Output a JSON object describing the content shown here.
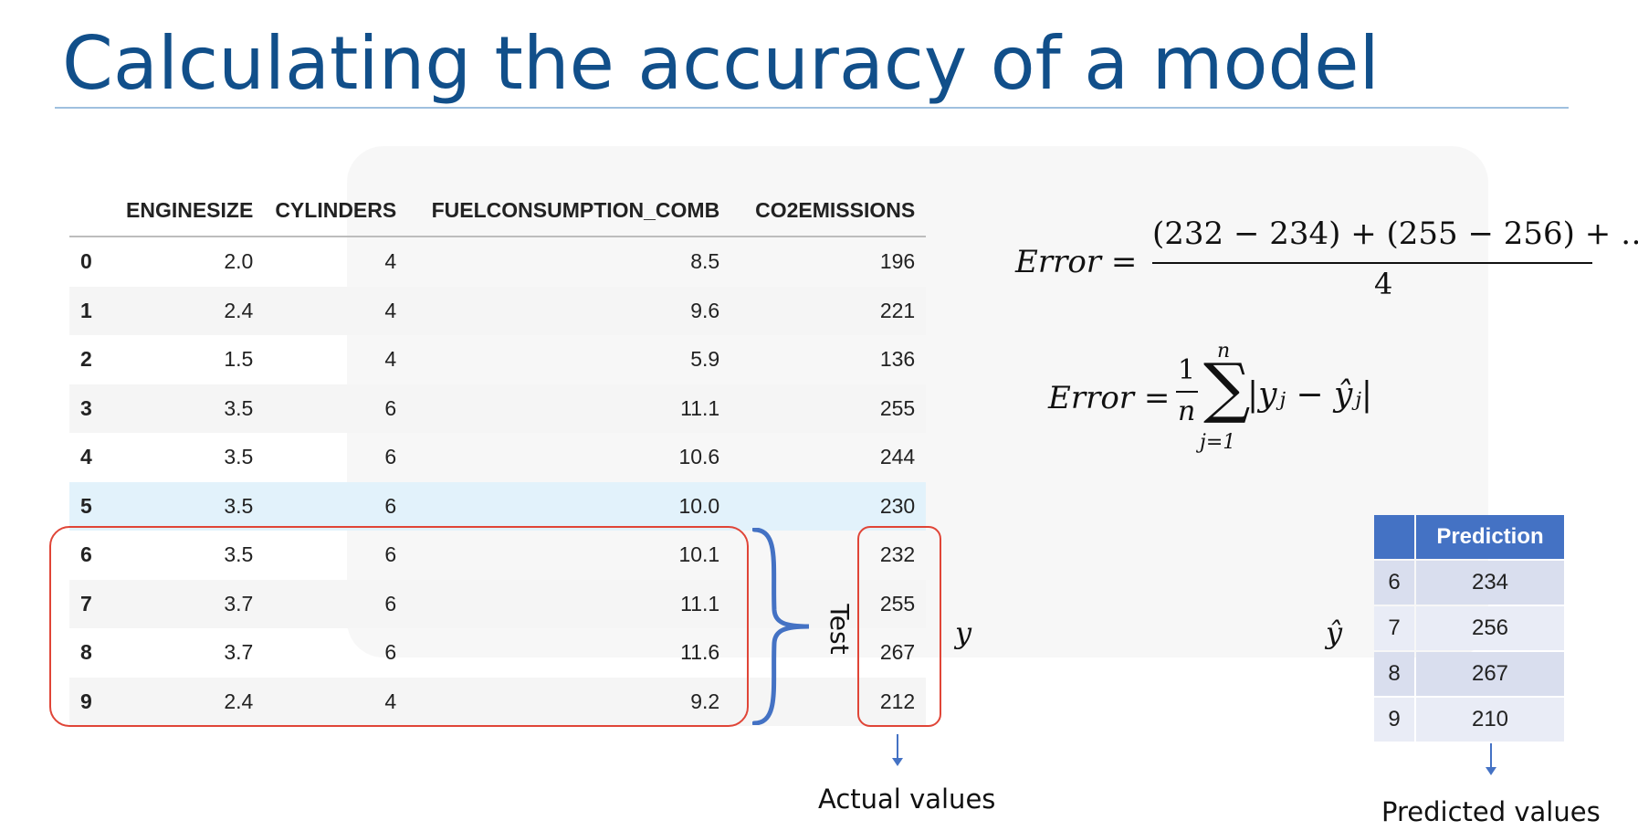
{
  "title": "Calculating the accuracy of a model",
  "table": {
    "columns": [
      "",
      "ENGINESIZE",
      "CYLINDERS",
      "FUELCONSUMPTION_COMB",
      "CO2EMISSIONS"
    ],
    "rows": [
      [
        "0",
        "2.0",
        "4",
        "8.5",
        "196"
      ],
      [
        "1",
        "2.4",
        "4",
        "9.6",
        "221"
      ],
      [
        "2",
        "1.5",
        "4",
        "5.9",
        "136"
      ],
      [
        "3",
        "3.5",
        "6",
        "11.1",
        "255"
      ],
      [
        "4",
        "3.5",
        "6",
        "10.6",
        "244"
      ],
      [
        "5",
        "3.5",
        "6",
        "10.0",
        "230"
      ],
      [
        "6",
        "3.5",
        "6",
        "10.1",
        "232"
      ],
      [
        "7",
        "3.7",
        "6",
        "11.1",
        "255"
      ],
      [
        "8",
        "3.7",
        "6",
        "11.6",
        "267"
      ],
      [
        "9",
        "2.4",
        "4",
        "9.2",
        "212"
      ]
    ]
  },
  "labels": {
    "test": "Test",
    "y": "y",
    "y_hat": "ŷ",
    "actual": "Actual values",
    "predicted": "Predicted values"
  },
  "formula1": {
    "lhs": "Error =",
    "numerator": "(232 − 234) + (255 − 256) +  …",
    "denominator": "4"
  },
  "formula2": {
    "lhs": "Error =",
    "one": "1",
    "n": "n",
    "sum_upper": "n",
    "sum_lower": "j=1",
    "sigma": "∑",
    "abs_term": "|yⱼ − ŷⱼ|"
  },
  "prediction_table": {
    "header": "Prediction",
    "rows": [
      [
        "6",
        "234"
      ],
      [
        "7",
        "256"
      ],
      [
        "8",
        "267"
      ],
      [
        "9",
        "210"
      ]
    ]
  },
  "colors": {
    "title": "#114f8a",
    "accent_blue": "#4472c4",
    "red_box": "#e04537",
    "highlight_row": "#e2f2fb"
  }
}
